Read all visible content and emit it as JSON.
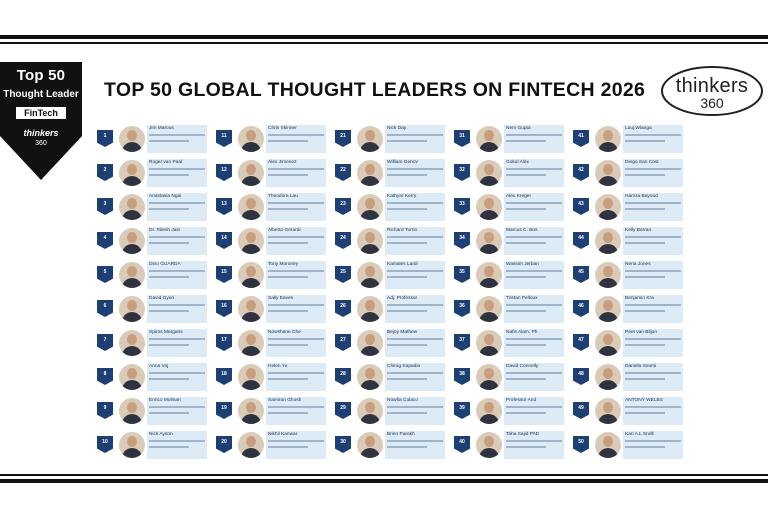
{
  "headline": "TOP 50 GLOBAL THOUGHT LEADERS ON FINTECH 2026",
  "badge": {
    "top": "Top 50",
    "role": "Thought Leader",
    "topic": "FinTech",
    "brand": "thinkers",
    "brand_num": "360"
  },
  "logo": {
    "word": "thinkers",
    "num": "360"
  },
  "colors": {
    "rank_badge": "#1d3f73",
    "card_bg": "#dcebf6",
    "rule": "#111111"
  },
  "leaders": [
    {
      "rank": "1",
      "name": "Jim Marous"
    },
    {
      "rank": "2",
      "name": "Roger van Paal"
    },
    {
      "rank": "3",
      "name": "Anastasia Ngai"
    },
    {
      "rank": "4",
      "name": "Dr. Ritesh Jain"
    },
    {
      "rank": "5",
      "name": "Dino GUARDA"
    },
    {
      "rank": "6",
      "name": "David Gyori"
    },
    {
      "rank": "7",
      "name": "Spiros Margaris"
    },
    {
      "rank": "8",
      "name": "Anna Voj"
    },
    {
      "rank": "9",
      "name": "Enrico Molinari"
    },
    {
      "rank": "10",
      "name": "Nick Ayson"
    },
    {
      "rank": "11",
      "name": "Chris Skinner"
    },
    {
      "rank": "12",
      "name": "Alex Jimenez"
    },
    {
      "rank": "13",
      "name": "Theodora Lau"
    },
    {
      "rank": "14",
      "name": "Alberto Gerardi"
    },
    {
      "rank": "15",
      "name": "Tony Moroney"
    },
    {
      "rank": "16",
      "name": "Sally Eaves"
    },
    {
      "rank": "17",
      "name": "Nowshane Che"
    },
    {
      "rank": "18",
      "name": "Helen Yu"
    },
    {
      "rank": "19",
      "name": "Samiran Ghosh"
    },
    {
      "rank": "20",
      "name": "Nikhil Kanwar"
    },
    {
      "rank": "21",
      "name": "Nick Day"
    },
    {
      "rank": "22",
      "name": "William Genov"
    },
    {
      "rank": "23",
      "name": "Kathyar Kerry"
    },
    {
      "rank": "24",
      "name": "Richard Turrin"
    },
    {
      "rank": "25",
      "name": "Kamales Lardi"
    },
    {
      "rank": "26",
      "name": "Adj. Professor"
    },
    {
      "rank": "27",
      "name": "Bejoy Mathew"
    },
    {
      "rank": "28",
      "name": "Chirag Kapadia"
    },
    {
      "rank": "29",
      "name": "Nowfia Colaco"
    },
    {
      "rank": "30",
      "name": "Brien Parekh"
    },
    {
      "rank": "31",
      "name": "Nem Gupta"
    },
    {
      "rank": "32",
      "name": "Gokul Alex"
    },
    {
      "rank": "33",
      "name": "Alex Kreger"
    },
    {
      "rank": "34",
      "name": "Marcus C. Bos"
    },
    {
      "rank": "35",
      "name": "Wassim Jerban"
    },
    {
      "rank": "36",
      "name": "Tristan Pelloux"
    },
    {
      "rank": "37",
      "name": "Nafis Alam, Ph"
    },
    {
      "rank": "38",
      "name": "David Connelly"
    },
    {
      "rank": "39",
      "name": "Professor And"
    },
    {
      "rank": "40",
      "name": "Taha Sajid PhD"
    },
    {
      "rank": "41",
      "name": "Luuj Wlanga"
    },
    {
      "rank": "42",
      "name": "Diego San Cost"
    },
    {
      "rank": "43",
      "name": "Hamza Bayoud"
    },
    {
      "rank": "44",
      "name": "Kelly Barran"
    },
    {
      "rank": "45",
      "name": "Nena Jones"
    },
    {
      "rank": "46",
      "name": "Benjamin Kra"
    },
    {
      "rank": "47",
      "name": "Peet van Biljon"
    },
    {
      "rank": "48",
      "name": "Daniela Soumi"
    },
    {
      "rank": "49",
      "name": "ANTONY WELBS"
    },
    {
      "rank": "50",
      "name": "Kari A.L Sndll"
    }
  ]
}
